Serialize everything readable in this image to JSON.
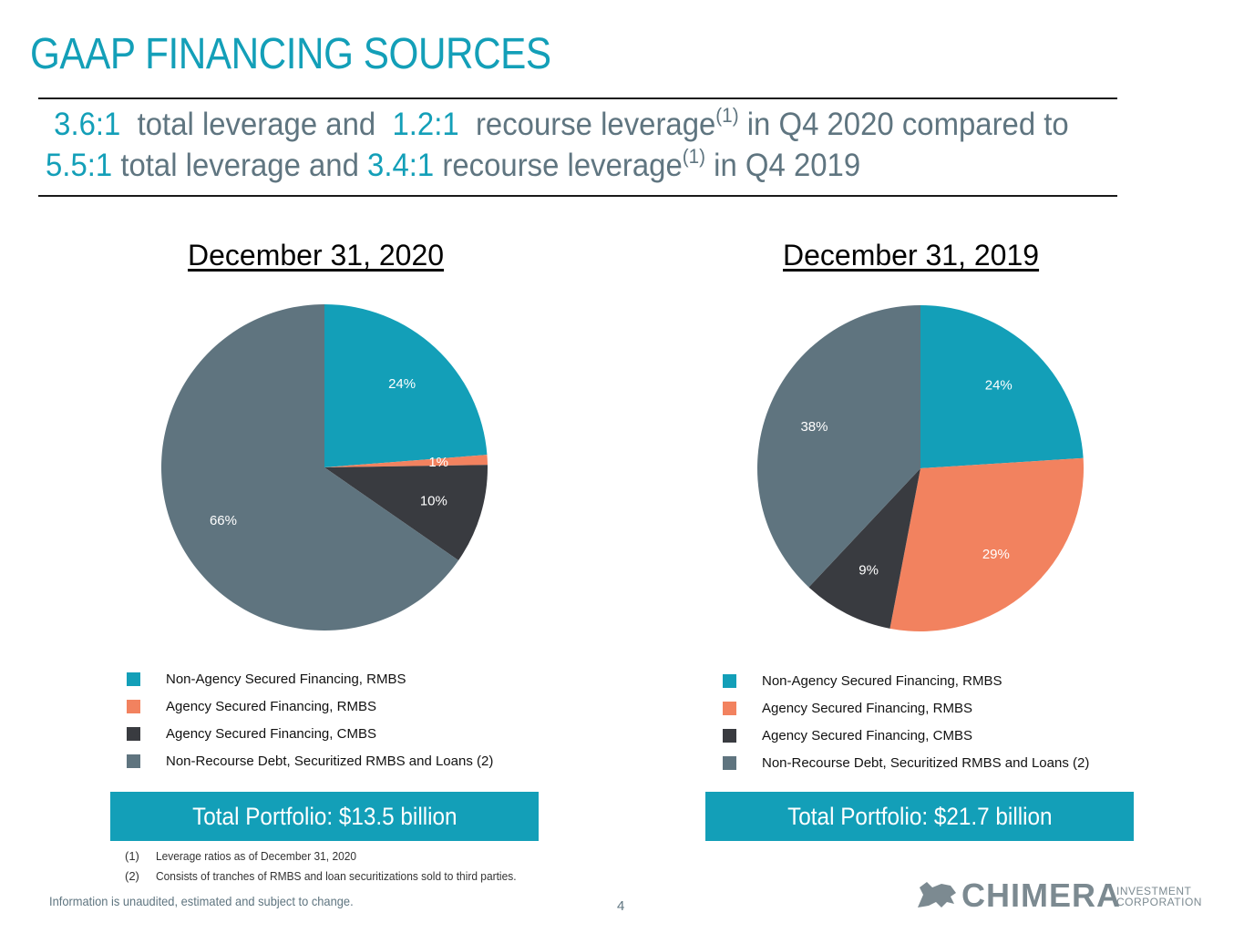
{
  "page": {
    "title": "GAAP FINANCING SOURCES",
    "headline": {
      "line1_pre": "3.6:1",
      "line1_mid1": "total leverage and",
      "line1_val2": "1.2:1",
      "line1_mid2": "recourse leverage",
      "line1_sup": "(1)",
      "line1_post": "in Q4 2020 compared to",
      "line2_val1": "5.5:1",
      "line2_mid1": "total leverage and",
      "line2_val2": "3.4:1",
      "line2_mid2": "recourse leverage",
      "line2_sup": "(1)",
      "line2_post": "in Q4 2019"
    },
    "footnotes": [
      {
        "num": "(1)",
        "text": "Leverage ratios as of December 31, 2020"
      },
      {
        "num": "(2)",
        "text": "Consists of tranches of RMBS and loan securitizations sold to third parties."
      }
    ],
    "disclaimer": "Information is unaudited, estimated and subject to change.",
    "page_number": "4",
    "logo": {
      "word": "CHIMERA",
      "sub1": "INVESTMENT",
      "sub2": "CORPORATION"
    }
  },
  "colors": {
    "non_agency_rmbs": "#139fb8",
    "agency_rmbs": "#f2825f",
    "agency_cmbs": "#393b40",
    "non_recourse": "#5f747f"
  },
  "chart_data": [
    {
      "type": "pie",
      "title": "December 31, 2020",
      "labels": [
        "Non-Agency Secured Financing, RMBS",
        "Agency Secured Financing, RMBS",
        "Agency Secured Financing, CMBS",
        "Non-Recourse Debt, Securitized RMBS and Loans (2)"
      ],
      "values": [
        24,
        1,
        10,
        66
      ],
      "data_labels": [
        "24%",
        "1%",
        "10%",
        "66%"
      ],
      "total": "Total Portfolio: $13.5 billion"
    },
    {
      "type": "pie",
      "title": "December 31, 2019",
      "labels": [
        "Non-Agency Secured Financing, RMBS",
        "Agency Secured Financing, RMBS",
        "Agency Secured Financing, CMBS",
        "Non-Recourse Debt, Securitized RMBS and Loans (2)"
      ],
      "values": [
        24,
        29,
        9,
        38
      ],
      "data_labels": [
        "24%",
        "29%",
        "9%",
        "38%"
      ],
      "total": "Total Portfolio: $21.7 billion"
    }
  ]
}
